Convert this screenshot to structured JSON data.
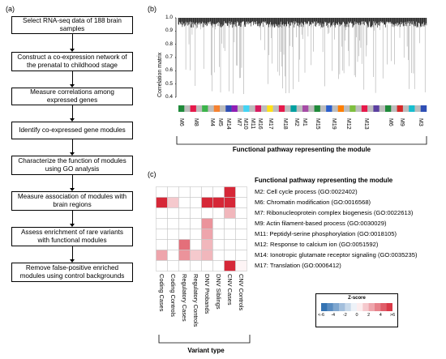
{
  "panels": {
    "a": "(a)",
    "b": "(b)",
    "c": "(c)"
  },
  "flowchart": {
    "steps": [
      "Select RNA-seq data of 188 brain samples",
      "Construct a co-expression network of the prenatal to childhood stage",
      "Measure correlations among expressed genes",
      "Identify co-expressed gene modules",
      "Characterize the function of modules using GO analysis",
      "Measure association of modules with brain regions",
      "Assess enrichment of rare variants with functional modules",
      "Remove false-positive enriched modules using control backgrounds"
    ]
  },
  "dendrogram": {
    "ylabel": "Correlation matrix",
    "yticks": [
      "1.0",
      "0.9",
      "0.8",
      "0.7",
      "0.6",
      "0.5",
      "0.4"
    ],
    "module_labels": [
      "M6",
      "M8",
      "M4",
      "M5",
      "M14",
      "M7",
      "M10",
      "M11",
      "M16",
      "M17",
      "M18",
      "M2",
      "M1",
      "M15",
      "M19",
      "M12",
      "M13",
      "M6",
      "M9",
      "M3"
    ],
    "color_strip": [
      "#1f8a3a",
      "#bdbdbd",
      "#e6194b",
      "#bdbdbd",
      "#3cb44b",
      "#bdbdbd",
      "#f58231",
      "#bdbdbd",
      "#2f4fb5",
      "#911eb4",
      "#bdbdbd",
      "#42d4f4",
      "#bdbdbd",
      "#d81b60",
      "#bdbdbd",
      "#ffe119",
      "#bdbdbd",
      "#e6194b",
      "#bdbdbd",
      "#00a0a0",
      "#bdbdbd",
      "#a64ca6",
      "#bdbdbd",
      "#1f8a3a",
      "#bdbdbd",
      "#2b5fce",
      "#bdbdbd",
      "#ff7f00",
      "#bdbdbd",
      "#7fbf3f",
      "#bdbdbd",
      "#e6194b",
      "#bdbdbd",
      "#5b3fa0",
      "#bdbdbd",
      "#1f8a3a",
      "#bdbdbd",
      "#d62728",
      "#bdbdbd",
      "#17becf",
      "#bdbdbd",
      "#2f4fb5"
    ],
    "xlabel": "Functional pathway representing the module"
  },
  "heatmap": {
    "title": "Functional pathway representing the module",
    "rows": [
      "M2: Cell cycle process (GO:0022402)",
      "M6: Chromatin modification (GO:0016568)",
      "M7: Ribonucleoprotein complex biogenesis (GO:0022613)",
      "M9: Actin filament-based process (GO:0030029)",
      "M11: Peptidyl-serine phosphorylation (GO:0018105)",
      "M12: Response to calcium ion (GO:0051592)",
      "M14: Ionotropic glutamate receptor signaling (GO:0035235)",
      "M17: Translation (GO:0006412)"
    ],
    "columns": [
      "Coding Cases",
      "Coding Controls",
      "Regulatory Cases",
      "Regulatory Controls",
      "DNV Probands",
      "DNV Siblings",
      "CNV Cases",
      "CNV Controls"
    ],
    "values": [
      [
        0,
        0,
        0,
        0,
        0,
        0,
        6,
        0
      ],
      [
        6,
        1.5,
        0,
        0,
        6,
        6,
        6,
        0
      ],
      [
        0,
        0,
        0,
        0,
        0,
        0,
        2,
        0
      ],
      [
        0,
        0,
        0,
        0,
        3,
        0,
        0,
        0
      ],
      [
        0,
        0,
        0,
        0,
        2.5,
        0,
        0,
        0
      ],
      [
        0,
        0,
        4,
        0,
        2,
        0,
        0,
        0
      ],
      [
        2.5,
        0,
        3,
        1.5,
        2,
        0,
        0,
        0
      ],
      [
        0,
        0,
        0,
        0,
        0,
        0,
        6,
        0.3
      ]
    ],
    "xgroup_label": "Variant type",
    "legend": {
      "title": "Z-score",
      "ticks": [
        "<-6",
        "-4",
        "-2",
        "0",
        "2",
        "4",
        ">6"
      ]
    }
  }
}
